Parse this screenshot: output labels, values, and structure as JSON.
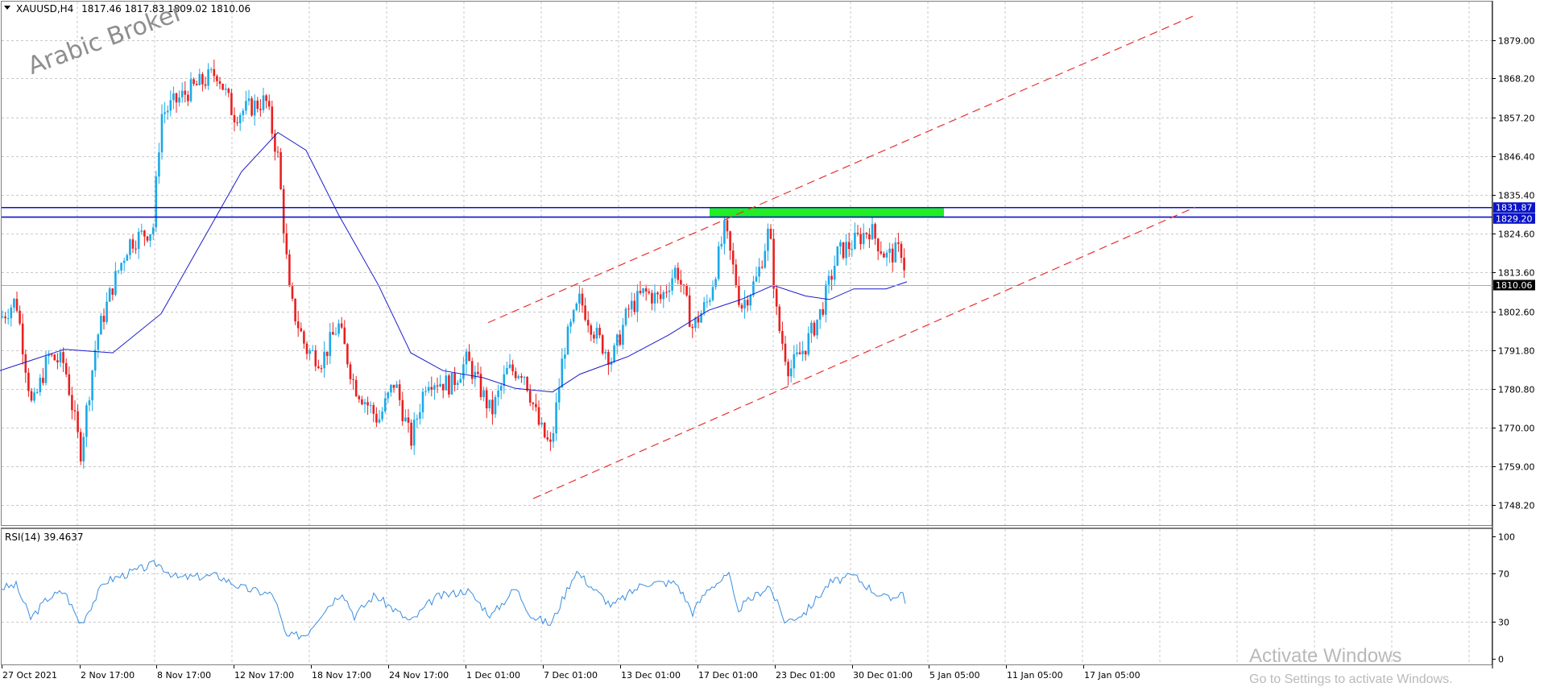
{
  "main_panel": {
    "header_symbol": "XAUUSD,H4",
    "ohlc_text": "1817.46 1817.83 1809.02 1810.06",
    "watermark": "Arabic Broker",
    "price_ticks": [
      "1879.00",
      "1868.20",
      "1857.20",
      "1846.40",
      "1835.40",
      "1824.60",
      "1813.60",
      "1802.60",
      "1791.80",
      "1780.80",
      "1770.00",
      "1759.00",
      "1748.20"
    ],
    "level_labels": {
      "resistance_upper": "1831.87",
      "resistance_lower": "1829.20",
      "current_price": "1810.06"
    }
  },
  "rsi_panel": {
    "header": "RSI(14) 39.4637",
    "ticks": [
      "100",
      "70",
      "30",
      "0"
    ]
  },
  "time_axis": {
    "labels": [
      "27 Oct 2021",
      "2 Nov 17:00",
      "8 Nov 17:00",
      "12 Nov 17:00",
      "18 Nov 17:00",
      "24 Nov 17:00",
      "1 Dec 01:00",
      "7 Dec 01:00",
      "13 Dec 01:00",
      "17 Dec 01:00",
      "23 Dec 01:00",
      "30 Dec 01:00",
      "5 Jan 05:00",
      "11 Jan 05:00",
      "17 Jan 05:00"
    ]
  },
  "os_overlay": {
    "activate_title": "Activate Windows",
    "activate_sub": "Go to Settings to activate Windows."
  },
  "colors": {
    "bull": "#1ba9e8",
    "bear": "#e82020",
    "ma": "#1a1acc",
    "hlines": "#0b14c8",
    "channel": "#e83030",
    "zone": "#22ee22",
    "rsi": "#3a8ee0",
    "grid": "#c8c8c8"
  },
  "chart_data": {
    "type": "candlestick",
    "symbol": "XAUUSD",
    "timeframe": "H4",
    "y_range": [
      1743,
      1888
    ],
    "rsi_range": [
      0,
      100
    ],
    "price_path": [
      {
        "x": 2,
        "y": 1801
      },
      {
        "x": 20,
        "y": 1806
      },
      {
        "x": 40,
        "y": 1775
      },
      {
        "x": 60,
        "y": 1790
      },
      {
        "x": 80,
        "y": 1788
      },
      {
        "x": 100,
        "y": 1763
      },
      {
        "x": 120,
        "y": 1795
      },
      {
        "x": 140,
        "y": 1810
      },
      {
        "x": 160,
        "y": 1822
      },
      {
        "x": 190,
        "y": 1826
      },
      {
        "x": 200,
        "y": 1858
      },
      {
        "x": 230,
        "y": 1864
      },
      {
        "x": 270,
        "y": 1870
      },
      {
        "x": 290,
        "y": 1858
      },
      {
        "x": 330,
        "y": 1862
      },
      {
        "x": 345,
        "y": 1846
      },
      {
        "x": 360,
        "y": 1806
      },
      {
        "x": 380,
        "y": 1792
      },
      {
        "x": 400,
        "y": 1789
      },
      {
        "x": 420,
        "y": 1799
      },
      {
        "x": 440,
        "y": 1782
      },
      {
        "x": 470,
        "y": 1772
      },
      {
        "x": 490,
        "y": 1783
      },
      {
        "x": 510,
        "y": 1766
      },
      {
        "x": 530,
        "y": 1784
      },
      {
        "x": 560,
        "y": 1782
      },
      {
        "x": 580,
        "y": 1789
      },
      {
        "x": 610,
        "y": 1774
      },
      {
        "x": 630,
        "y": 1786
      },
      {
        "x": 650,
        "y": 1786
      },
      {
        "x": 670,
        "y": 1770
      },
      {
        "x": 684,
        "y": 1764
      },
      {
        "x": 700,
        "y": 1792
      },
      {
        "x": 720,
        "y": 1806
      },
      {
        "x": 740,
        "y": 1796
      },
      {
        "x": 760,
        "y": 1789
      },
      {
        "x": 780,
        "y": 1803
      },
      {
        "x": 800,
        "y": 1808
      },
      {
        "x": 820,
        "y": 1806
      },
      {
        "x": 840,
        "y": 1815
      },
      {
        "x": 860,
        "y": 1798
      },
      {
        "x": 880,
        "y": 1806
      },
      {
        "x": 900,
        "y": 1826
      },
      {
        "x": 910,
        "y": 1815
      },
      {
        "x": 920,
        "y": 1804
      },
      {
        "x": 940,
        "y": 1812
      },
      {
        "x": 955,
        "y": 1826
      },
      {
        "x": 965,
        "y": 1800
      },
      {
        "x": 980,
        "y": 1786
      },
      {
        "x": 1000,
        "y": 1793
      },
      {
        "x": 1020,
        "y": 1803
      },
      {
        "x": 1040,
        "y": 1819
      },
      {
        "x": 1060,
        "y": 1822
      },
      {
        "x": 1080,
        "y": 1826
      },
      {
        "x": 1100,
        "y": 1818
      },
      {
        "x": 1120,
        "y": 1820
      },
      {
        "x": 1126,
        "y": 1810
      }
    ],
    "ma_path": [
      {
        "x": 0,
        "y": 1786
      },
      {
        "x": 40,
        "y": 1789
      },
      {
        "x": 80,
        "y": 1792
      },
      {
        "x": 140,
        "y": 1791
      },
      {
        "x": 200,
        "y": 1802
      },
      {
        "x": 250,
        "y": 1822
      },
      {
        "x": 300,
        "y": 1842
      },
      {
        "x": 345,
        "y": 1853
      },
      {
        "x": 380,
        "y": 1848
      },
      {
        "x": 420,
        "y": 1830
      },
      {
        "x": 470,
        "y": 1810
      },
      {
        "x": 510,
        "y": 1791
      },
      {
        "x": 550,
        "y": 1786
      },
      {
        "x": 600,
        "y": 1784
      },
      {
        "x": 640,
        "y": 1781
      },
      {
        "x": 686,
        "y": 1780
      },
      {
        "x": 720,
        "y": 1785
      },
      {
        "x": 780,
        "y": 1790
      },
      {
        "x": 830,
        "y": 1796
      },
      {
        "x": 880,
        "y": 1803
      },
      {
        "x": 920,
        "y": 1806
      },
      {
        "x": 960,
        "y": 1810
      },
      {
        "x": 1000,
        "y": 1807
      },
      {
        "x": 1030,
        "y": 1806
      },
      {
        "x": 1060,
        "y": 1809
      },
      {
        "x": 1100,
        "y": 1809
      },
      {
        "x": 1126,
        "y": 1811
      }
    ],
    "rsi_path": [
      {
        "x": 2,
        "y": 58
      },
      {
        "x": 20,
        "y": 60
      },
      {
        "x": 38,
        "y": 33
      },
      {
        "x": 60,
        "y": 50
      },
      {
        "x": 80,
        "y": 55
      },
      {
        "x": 100,
        "y": 28
      },
      {
        "x": 130,
        "y": 63
      },
      {
        "x": 160,
        "y": 70
      },
      {
        "x": 195,
        "y": 78
      },
      {
        "x": 220,
        "y": 66
      },
      {
        "x": 270,
        "y": 68
      },
      {
        "x": 300,
        "y": 58
      },
      {
        "x": 340,
        "y": 52
      },
      {
        "x": 355,
        "y": 18
      },
      {
        "x": 380,
        "y": 20
      },
      {
        "x": 400,
        "y": 38
      },
      {
        "x": 425,
        "y": 55
      },
      {
        "x": 440,
        "y": 35
      },
      {
        "x": 465,
        "y": 52
      },
      {
        "x": 490,
        "y": 40
      },
      {
        "x": 510,
        "y": 30
      },
      {
        "x": 540,
        "y": 50
      },
      {
        "x": 580,
        "y": 56
      },
      {
        "x": 610,
        "y": 35
      },
      {
        "x": 640,
        "y": 58
      },
      {
        "x": 660,
        "y": 35
      },
      {
        "x": 684,
        "y": 28
      },
      {
        "x": 715,
        "y": 72
      },
      {
        "x": 740,
        "y": 55
      },
      {
        "x": 760,
        "y": 43
      },
      {
        "x": 800,
        "y": 62
      },
      {
        "x": 840,
        "y": 62
      },
      {
        "x": 860,
        "y": 38
      },
      {
        "x": 880,
        "y": 58
      },
      {
        "x": 905,
        "y": 68
      },
      {
        "x": 915,
        "y": 40
      },
      {
        "x": 955,
        "y": 60
      },
      {
        "x": 975,
        "y": 30
      },
      {
        "x": 1000,
        "y": 38
      },
      {
        "x": 1030,
        "y": 62
      },
      {
        "x": 1060,
        "y": 68
      },
      {
        "x": 1085,
        "y": 55
      },
      {
        "x": 1105,
        "y": 48
      },
      {
        "x": 1120,
        "y": 56
      },
      {
        "x": 1126,
        "y": 40
      }
    ],
    "horizontal_levels": [
      1831.87,
      1829.2
    ],
    "current_price": 1810.06,
    "resistance_zone": {
      "x_from": 881,
      "x_to": 1172,
      "y_from": 1829.2,
      "y_to": 1831.87
    },
    "channel": {
      "upper": [
        {
          "x": 606,
          "y": 1799.5
        },
        {
          "x": 1484,
          "y": 1886
        }
      ],
      "lower": [
        {
          "x": 662,
          "y": 1750
        },
        {
          "x": 1484,
          "y": 1832
        }
      ]
    },
    "rsi_value": 39.4637
  }
}
